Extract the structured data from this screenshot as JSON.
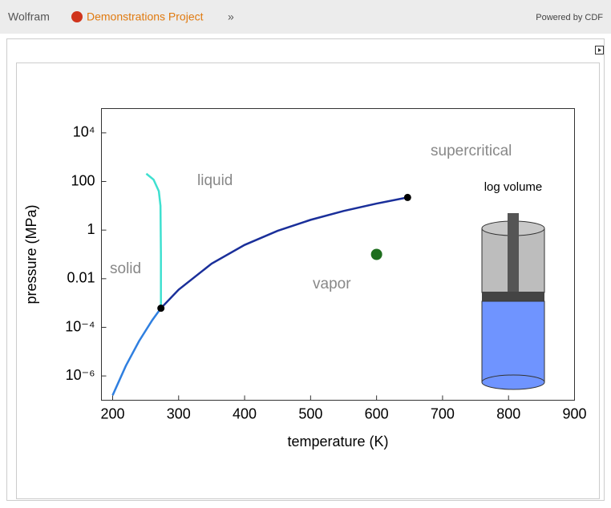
{
  "header": {
    "brand": "Wolfram",
    "project": "Demonstrations Project",
    "arrow": "»",
    "powered": "Powered by CDF"
  },
  "chart_data": {
    "type": "line",
    "xlabel": "temperature (K)",
    "ylabel": "pressure (MPa)",
    "xlim": [
      183,
      900
    ],
    "ylim": [
      1e-07,
      100000
    ],
    "ylog": true,
    "grid": false,
    "xticks": [
      200,
      300,
      400,
      500,
      600,
      700,
      800,
      900
    ],
    "yticks": [
      {
        "value": 10000,
        "label": "10⁴"
      },
      100,
      1,
      0.01,
      {
        "value": 0.0001,
        "label": "10⁻⁴"
      },
      {
        "value": 1e-06,
        "label": "10⁻⁶"
      }
    ],
    "series": [
      {
        "style": "line",
        "color": "#2f7fe0",
        "x": [
          200,
          220,
          240,
          260,
          273.16
        ],
        "values": [
          1.6e-07,
          2.6e-06,
          2.7e-05,
          0.000196,
          0.000611
        ]
      },
      {
        "style": "line",
        "color": "#1a2f9a",
        "x": [
          273.16,
          300,
          350,
          400,
          450,
          500,
          550,
          600,
          647
        ],
        "values": [
          0.000611,
          0.00354,
          0.0417,
          0.2456,
          0.932,
          2.64,
          6.12,
          12.34,
          22.06
        ]
      },
      {
        "style": "line",
        "color": "#3fe0d0",
        "x": [
          273.16,
          273.15,
          272.5,
          270,
          262,
          251
        ],
        "values": [
          0.000611,
          0.1,
          10,
          40,
          120,
          210
        ]
      },
      {
        "style": "point",
        "color": "#000000",
        "x": [
          273.16,
          647
        ],
        "values": [
          0.000611,
          22.06
        ]
      },
      {
        "style": "point",
        "color": "#1e6e1e",
        "x": [
          600
        ],
        "values": [
          0.1
        ]
      }
    ],
    "annotations": [
      "solid",
      "liquid",
      "vapor",
      "supercritical"
    ],
    "inset_label": "log volume"
  }
}
